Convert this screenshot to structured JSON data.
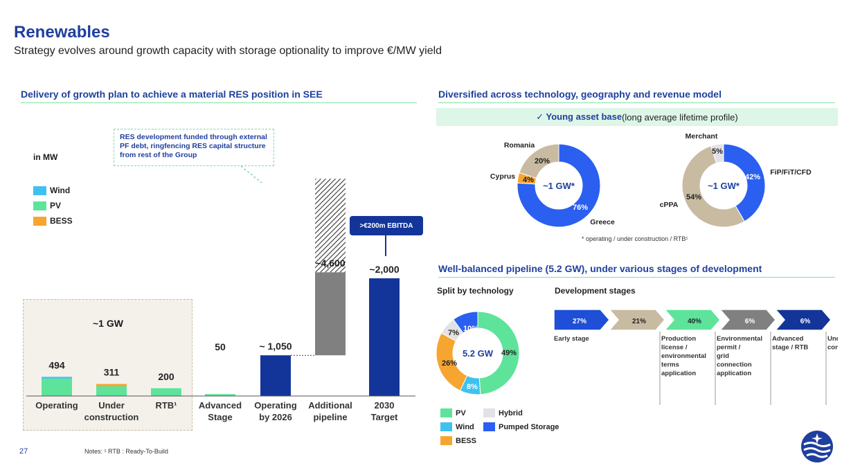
{
  "title": "Renewables",
  "subtitle": "Strategy evolves around growth capacity with storage optionality to improve €/MW yield",
  "page_number": "27",
  "notes": "Notes: ¹ RTB : Ready-To-Build",
  "colors": {
    "wind": "#3fc1f0",
    "pv": "#5de49a",
    "bess": "#f7a531",
    "navy": "#13359a",
    "grey": "#808080",
    "blue": "#2a5ff0",
    "tan": "#c8bba1",
    "hybrid": "#e2e2e6"
  },
  "left": {
    "heading": "Delivery of growth plan to achieve a material RES position in SEE",
    "unit": "in MW",
    "callout": "RES development funded through external PF debt, ringfencing RES capital structure from rest of the Group",
    "gw_label": "~1 GW",
    "ebitda_label": ">€200m EBITDA",
    "legend": [
      {
        "name": "Wind",
        "color": "#3fc1f0"
      },
      {
        "name": "PV",
        "color": "#5de49a"
      },
      {
        "name": "BESS",
        "color": "#f7a531"
      }
    ]
  },
  "right_top": {
    "heading": "Diversified across technology, geography and revenue model",
    "banner_strong": "✓  Young asset base",
    "banner_rest": " (long average lifetime profile)",
    "footnote": "* operating / under construction / RTB¹"
  },
  "right_bottom": {
    "heading": "Well-balanced pipeline (5.2 GW), under various stages of development",
    "split_label": "Split by technology",
    "stages_label": "Development stages",
    "legend": [
      {
        "name": "PV",
        "color": "#5de49a"
      },
      {
        "name": "Hybrid",
        "color": "#e2e2e6"
      },
      {
        "name": "Wind",
        "color": "#3fc1f0"
      },
      {
        "name": "Pumped Storage",
        "color": "#2a5ff0"
      },
      {
        "name": "BESS",
        "color": "#f7a531"
      }
    ],
    "stages": [
      {
        "pct": "27%",
        "label": "Early stage",
        "color": "#1f4fd6"
      },
      {
        "pct": "21%",
        "label": "Production license / environmental terms application",
        "color": "#c8bba1"
      },
      {
        "pct": "40%",
        "label": "Environmental permit / grid connection application",
        "color": "#5de49a"
      },
      {
        "pct": "6%",
        "label": "Advanced stage / RTB",
        "color": "#808080"
      },
      {
        "pct": "6%",
        "label": "Under construction",
        "color": "#13359a"
      }
    ]
  },
  "chart_data": [
    {
      "type": "bar",
      "title": "Delivery of growth plan to achieve a material RES position in SEE",
      "ylabel": "in MW",
      "categories": [
        "Operating",
        "Under construction",
        "RTB¹",
        "Advanced Stage",
        "Operating by 2026",
        "Additional pipeline",
        "2030 Target"
      ],
      "data_labels": [
        "494",
        "311",
        "200",
        "50",
        "~ 1,050",
        "~4,600",
        "~2,000"
      ],
      "series": [
        {
          "name": "Wind",
          "values": [
            45,
            0,
            0,
            0,
            0,
            0,
            0
          ]
        },
        {
          "name": "PV",
          "values": [
            449,
            251,
            200,
            50,
            0,
            0,
            0
          ]
        },
        {
          "name": "BESS",
          "values": [
            0,
            60,
            0,
            0,
            0,
            0,
            0
          ]
        }
      ],
      "totals": [
        494,
        311,
        200,
        50,
        1050,
        4600,
        2000
      ]
    },
    {
      "type": "pie",
      "title": "",
      "center_label": "~1 GW*",
      "slices": [
        {
          "label": "Greece",
          "value": 76
        },
        {
          "label": "Cyprus",
          "value": 4
        },
        {
          "label": "Romania",
          "value": 20
        }
      ]
    },
    {
      "type": "pie",
      "title": "",
      "center_label": "~1 GW*",
      "slices": [
        {
          "label": "FiP/FiT/CFD",
          "value": 42
        },
        {
          "label": "cPPA",
          "value": 54
        },
        {
          "label": "Merchant",
          "value": 5
        }
      ]
    },
    {
      "type": "pie",
      "title": "Split by technology",
      "center_label": "5.2 GW",
      "slices": [
        {
          "label": "PV",
          "value": 49
        },
        {
          "label": "Wind",
          "value": 8
        },
        {
          "label": "BESS",
          "value": 26
        },
        {
          "label": "Hybrid",
          "value": 7
        },
        {
          "label": "Pumped Storage",
          "value": 10
        }
      ]
    }
  ]
}
